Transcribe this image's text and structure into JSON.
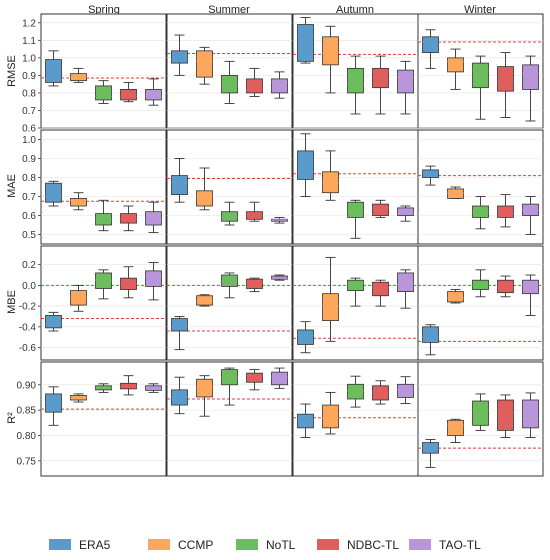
{
  "chart_data": {
    "type": "box",
    "seasons": [
      "Spring",
      "Summer",
      "Autumn",
      "Winter"
    ],
    "metrics": [
      {
        "key": "rmse",
        "label": "RMSE",
        "ylim": [
          0.6,
          1.25
        ],
        "ticks": [
          0.6,
          0.7,
          0.8,
          0.9,
          1.0,
          1.1,
          1.2
        ],
        "tick_labels": [
          "0.6",
          "0.7",
          "0.8",
          "0.9",
          "1.0",
          "1.1",
          "1.2"
        ]
      },
      {
        "key": "mae",
        "label": "MAE",
        "ylim": [
          0.45,
          1.05
        ],
        "ticks": [
          0.5,
          0.6,
          0.7,
          0.8,
          0.9,
          1.0
        ],
        "tick_labels": [
          "0.5",
          "0.6",
          "0.7",
          "0.8",
          "0.9",
          "1.0"
        ]
      },
      {
        "key": "mbe",
        "label": "MBE",
        "ylim": [
          -0.72,
          0.38
        ],
        "ticks": [
          -0.6,
          -0.4,
          -0.2,
          0.0,
          0.2
        ],
        "tick_labels": [
          "-0.6",
          "-0.4",
          "-0.2",
          "0.0",
          "0.2"
        ]
      },
      {
        "key": "r2",
        "label": "R²",
        "ylim": [
          0.72,
          0.945
        ],
        "ticks": [
          0.75,
          0.8,
          0.85,
          0.9
        ],
        "tick_labels": [
          "0.75",
          "0.80",
          "0.85",
          "0.90"
        ]
      }
    ],
    "models": [
      {
        "name": "ERA5",
        "color": "#5B9BCB"
      },
      {
        "name": "CCMP",
        "color": "#FCA75B"
      },
      {
        "name": "NoTL",
        "color": "#6CBD5E"
      },
      {
        "name": "NDBC-TL",
        "color": "#E05E5E"
      },
      {
        "name": "TAO-TL",
        "color": "#B996DA"
      }
    ],
    "reference_lines": {
      "rmse": [
        0.885,
        1.025,
        1.02,
        1.09
      ],
      "mae": [
        0.675,
        0.795,
        0.82,
        0.81
      ],
      "mbe": [
        -0.32,
        -0.44,
        -0.51,
        -0.54
      ],
      "r2": [
        0.852,
        0.872,
        0.835,
        0.775
      ]
    },
    "zero_line_metric": "mbe",
    "reference_line_color": "#E8383D",
    "zero_line_color": "#2CA02C",
    "boxes": {
      "rmse": [
        [
          [
            0.84,
            0.86,
            0.88,
            0.99,
            1.04
          ],
          [
            0.86,
            0.87,
            0.89,
            0.91,
            0.94
          ],
          [
            0.74,
            0.76,
            0.78,
            0.84,
            0.87
          ],
          [
            0.75,
            0.76,
            0.78,
            0.82,
            0.86
          ],
          [
            0.73,
            0.76,
            0.78,
            0.82,
            0.88
          ]
        ],
        [
          [
            0.9,
            0.97,
            0.99,
            1.04,
            1.13
          ],
          [
            0.85,
            0.89,
            0.98,
            1.04,
            1.06
          ],
          [
            0.74,
            0.8,
            0.86,
            0.9,
            0.98
          ],
          [
            0.78,
            0.8,
            0.82,
            0.88,
            0.94
          ],
          [
            0.77,
            0.8,
            0.86,
            0.88,
            0.92
          ]
        ],
        [
          [
            0.97,
            0.98,
            1.12,
            1.19,
            1.23
          ],
          [
            0.8,
            0.96,
            1.03,
            1.12,
            1.18
          ],
          [
            0.68,
            0.8,
            0.85,
            0.94,
            1.01
          ],
          [
            0.68,
            0.83,
            0.92,
            0.94,
            1.01
          ],
          [
            0.68,
            0.8,
            0.89,
            0.93,
            0.98
          ]
        ],
        [
          [
            0.94,
            1.03,
            1.09,
            1.12,
            1.16
          ],
          [
            0.82,
            0.92,
            0.98,
            1.0,
            1.05
          ],
          [
            0.65,
            0.83,
            0.93,
            0.97,
            1.01
          ],
          [
            0.66,
            0.81,
            0.87,
            0.95,
            1.03
          ],
          [
            0.64,
            0.82,
            0.91,
            0.96,
            1.01
          ]
        ]
      ],
      "mae": [
        [
          [
            0.65,
            0.67,
            0.7,
            0.77,
            0.78
          ],
          [
            0.63,
            0.65,
            0.68,
            0.69,
            0.72
          ],
          [
            0.52,
            0.55,
            0.58,
            0.61,
            0.68
          ],
          [
            0.52,
            0.56,
            0.58,
            0.61,
            0.65
          ],
          [
            0.51,
            0.55,
            0.58,
            0.62,
            0.67
          ]
        ],
        [
          [
            0.67,
            0.71,
            0.77,
            0.81,
            0.9
          ],
          [
            0.63,
            0.65,
            0.7,
            0.73,
            0.85
          ],
          [
            0.55,
            0.57,
            0.59,
            0.62,
            0.67
          ],
          [
            0.57,
            0.58,
            0.6,
            0.62,
            0.67
          ],
          [
            0.56,
            0.57,
            0.58,
            0.58,
            0.59
          ]
        ],
        [
          [
            0.7,
            0.79,
            0.83,
            0.94,
            1.03
          ],
          [
            0.68,
            0.72,
            0.77,
            0.83,
            0.94
          ],
          [
            0.48,
            0.59,
            0.62,
            0.67,
            0.68
          ],
          [
            0.59,
            0.6,
            0.64,
            0.66,
            0.68
          ],
          [
            0.57,
            0.6,
            0.61,
            0.64,
            0.65
          ]
        ],
        [
          [
            0.76,
            0.8,
            0.83,
            0.84,
            0.86
          ],
          [
            0.69,
            0.69,
            0.72,
            0.74,
            0.75
          ],
          [
            0.53,
            0.59,
            0.62,
            0.65,
            0.7
          ],
          [
            0.54,
            0.59,
            0.61,
            0.65,
            0.71
          ],
          [
            0.5,
            0.6,
            0.63,
            0.66,
            0.7
          ]
        ]
      ],
      "mbe": [
        [
          [
            -0.44,
            -0.41,
            -0.37,
            -0.29,
            -0.26
          ],
          [
            -0.25,
            -0.19,
            -0.12,
            -0.05,
            0.0
          ],
          [
            -0.13,
            -0.03,
            0.05,
            0.12,
            0.15
          ],
          [
            -0.12,
            -0.04,
            0.01,
            0.07,
            0.18
          ],
          [
            -0.14,
            -0.01,
            0.09,
            0.14,
            0.22
          ]
        ],
        [
          [
            -0.62,
            -0.44,
            -0.4,
            -0.32,
            -0.3
          ],
          [
            -0.2,
            -0.19,
            -0.15,
            -0.1,
            -0.09
          ],
          [
            -0.12,
            -0.01,
            0.04,
            0.1,
            0.12
          ],
          [
            -0.06,
            -0.03,
            0.03,
            0.06,
            0.07
          ],
          [
            0.05,
            0.06,
            0.07,
            0.09,
            0.1
          ]
        ],
        [
          [
            -0.65,
            -0.57,
            -0.48,
            -0.43,
            -0.35
          ],
          [
            -0.54,
            -0.34,
            -0.2,
            -0.08,
            0.27
          ],
          [
            -0.2,
            -0.05,
            0.02,
            0.05,
            0.07
          ],
          [
            -0.2,
            -0.1,
            -0.02,
            0.03,
            0.05
          ],
          [
            -0.22,
            -0.06,
            0.01,
            0.12,
            0.15
          ]
        ],
        [
          [
            -0.67,
            -0.55,
            -0.5,
            -0.4,
            -0.38
          ],
          [
            -0.17,
            -0.16,
            -0.12,
            -0.06,
            -0.04
          ],
          [
            -0.11,
            -0.04,
            0.0,
            0.05,
            0.15
          ],
          [
            -0.11,
            -0.07,
            -0.02,
            0.05,
            0.09
          ],
          [
            -0.29,
            -0.08,
            0.0,
            0.05,
            0.1
          ]
        ]
      ],
      "r2": [
        [
          [
            0.82,
            0.846,
            0.866,
            0.882,
            0.896
          ],
          [
            0.866,
            0.87,
            0.875,
            0.879,
            0.882
          ],
          [
            0.885,
            0.89,
            0.894,
            0.898,
            0.902
          ],
          [
            0.88,
            0.892,
            0.896,
            0.903,
            0.918
          ],
          [
            0.885,
            0.889,
            0.893,
            0.898,
            0.902
          ]
        ],
        [
          [
            0.843,
            0.86,
            0.876,
            0.89,
            0.915
          ],
          [
            0.838,
            0.876,
            0.895,
            0.911,
            0.918
          ],
          [
            0.86,
            0.9,
            0.915,
            0.93,
            0.933
          ],
          [
            0.89,
            0.905,
            0.918,
            0.923,
            0.93
          ],
          [
            0.893,
            0.9,
            0.915,
            0.925,
            0.933
          ]
        ],
        [
          [
            0.796,
            0.815,
            0.831,
            0.842,
            0.862
          ],
          [
            0.803,
            0.815,
            0.835,
            0.86,
            0.885
          ],
          [
            0.856,
            0.872,
            0.888,
            0.901,
            0.917
          ],
          [
            0.862,
            0.87,
            0.885,
            0.898,
            0.908
          ],
          [
            0.863,
            0.875,
            0.89,
            0.901,
            0.916
          ]
        ],
        [
          [
            0.737,
            0.765,
            0.775,
            0.786,
            0.792
          ],
          [
            0.786,
            0.8,
            0.82,
            0.83,
            0.832
          ],
          [
            0.81,
            0.82,
            0.85,
            0.868,
            0.882
          ],
          [
            0.796,
            0.81,
            0.845,
            0.87,
            0.88
          ],
          [
            0.796,
            0.815,
            0.833,
            0.87,
            0.884
          ]
        ]
      ]
    }
  }
}
